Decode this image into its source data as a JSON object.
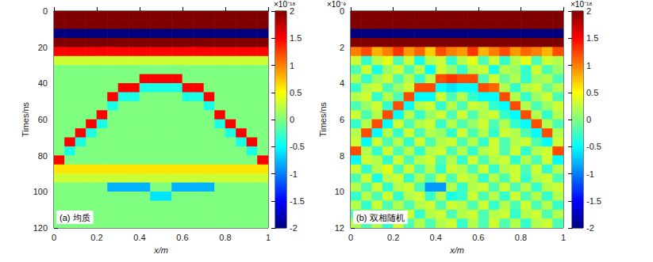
{
  "chart_data": [
    {
      "type": "heatmap",
      "title": "(a) 均质",
      "xlabel": "x/m",
      "ylabel": "Times/ns",
      "xlim": [
        0,
        1
      ],
      "xticks": [
        0,
        0.2,
        0.4,
        0.6,
        0.8,
        1
      ],
      "ylim": [
        0,
        120
      ],
      "yticks": [
        0,
        20,
        40,
        60,
        80,
        100,
        120
      ],
      "colorbar": {
        "range": [
          -2,
          2
        ],
        "ticks": [
          -2,
          -1.5,
          -1,
          -0.5,
          0,
          0.5,
          1,
          1.5,
          2
        ],
        "label": "×10⁻¹⁸"
      },
      "x": [
        0.025,
        0.075,
        0.125,
        0.175,
        0.225,
        0.275,
        0.325,
        0.375,
        0.425,
        0.475,
        0.525,
        0.575,
        0.625,
        0.675,
        0.725,
        0.775,
        0.825,
        0.875,
        0.925,
        0.975
      ],
      "y": [
        2.5,
        7.5,
        12.5,
        17.5,
        22.5,
        27.5,
        32.5,
        37.5,
        42.5,
        47.5,
        52.5,
        57.5,
        62.5,
        67.5,
        72.5,
        77.5,
        82.5,
        87.5,
        92.5,
        97.5,
        102.5,
        107.5,
        112.5,
        117.5
      ],
      "values": [
        [
          2,
          2,
          2,
          2,
          2,
          2,
          2,
          2,
          2,
          2,
          2,
          2,
          2,
          2,
          2,
          2,
          2,
          2,
          2,
          2
        ],
        [
          2,
          2,
          2,
          2,
          2,
          2,
          2,
          2,
          2,
          2,
          2,
          2,
          2,
          2,
          2,
          2,
          2,
          2,
          2,
          2
        ],
        [
          -2,
          -2,
          -2,
          -2,
          -2,
          -2,
          -2,
          -2,
          -2,
          -2,
          -2,
          -2,
          -2,
          -2,
          -2,
          -2,
          -2,
          -2,
          -2,
          -2
        ],
        [
          2,
          2,
          2,
          2,
          2,
          2,
          2,
          2,
          2,
          2,
          2,
          2,
          2,
          2,
          2,
          2,
          2,
          2,
          2,
          2
        ],
        [
          1.5,
          1.5,
          1.5,
          1.5,
          1.5,
          1.5,
          1.5,
          1.5,
          1.5,
          1.5,
          1.5,
          1.5,
          1.5,
          1.5,
          1.5,
          1.5,
          1.5,
          1.5,
          1.5,
          1.5
        ],
        [
          0.3,
          0.3,
          0.3,
          0.3,
          0.3,
          0.3,
          0.3,
          0.3,
          0.3,
          0.3,
          0.3,
          0.3,
          0.3,
          0.3,
          0.3,
          0.3,
          0.3,
          0.3,
          0.3,
          0.3
        ],
        [
          0,
          0,
          0,
          0,
          0,
          0,
          0,
          0,
          0,
          0,
          0,
          0,
          0,
          0,
          0,
          0,
          0,
          0,
          0,
          0
        ],
        [
          0,
          0,
          0,
          0,
          0,
          0,
          0,
          0,
          1.5,
          1.5,
          1.5,
          1.5,
          0,
          0,
          0,
          0,
          0,
          0,
          0,
          0
        ],
        [
          0,
          0,
          0,
          0,
          0,
          0,
          1.5,
          1.5,
          -0.4,
          -0.4,
          -0.4,
          -0.4,
          1.5,
          1.5,
          0,
          0,
          0,
          0,
          0,
          0
        ],
        [
          0,
          0,
          0,
          0,
          0,
          1.5,
          -0.4,
          -0.4,
          0,
          0,
          0,
          0,
          -0.4,
          -0.4,
          1.5,
          0,
          0,
          0,
          0,
          0
        ],
        [
          0,
          0,
          0,
          0,
          0,
          -0.4,
          0,
          0,
          0,
          0,
          0,
          0,
          0,
          0,
          -0.4,
          0,
          0,
          0,
          0,
          0
        ],
        [
          0,
          0,
          0,
          0,
          1.5,
          0,
          0,
          0,
          0,
          0,
          0,
          0,
          0,
          0,
          0,
          1.5,
          0,
          0,
          0,
          0
        ],
        [
          0,
          0,
          0,
          1.5,
          -0.4,
          0,
          0,
          0,
          0,
          0,
          0,
          0,
          0,
          0,
          0,
          -0.4,
          1.5,
          0,
          0,
          0
        ],
        [
          0,
          0,
          1.5,
          -0.4,
          0,
          0,
          0,
          0,
          0,
          0,
          0,
          0,
          0,
          0,
          0,
          0,
          -0.4,
          1.5,
          0,
          0
        ],
        [
          0,
          1.5,
          -0.4,
          0,
          0,
          0,
          0,
          0,
          0,
          0,
          0,
          0,
          0,
          0,
          0,
          0,
          0,
          -0.4,
          1.5,
          0
        ],
        [
          0,
          -0.4,
          0,
          0,
          0,
          0,
          0,
          0,
          0,
          0,
          0,
          0,
          0,
          0,
          0,
          0,
          0,
          0,
          -0.4,
          0
        ],
        [
          1.5,
          0,
          0,
          0,
          0,
          0,
          0,
          0,
          0,
          0,
          0,
          0,
          0,
          0,
          0,
          0,
          0,
          0,
          0,
          1.5
        ],
        [
          0.6,
          0.6,
          0.6,
          0.6,
          0.6,
          0.6,
          0.6,
          0.6,
          0.6,
          0.6,
          0.6,
          0.6,
          0.6,
          0.6,
          0.6,
          0.6,
          0.6,
          0.6,
          0.6,
          0.6
        ],
        [
          0.3,
          0.3,
          0.3,
          0.3,
          0.3,
          0.3,
          0.3,
          0.3,
          0.3,
          0.3,
          0.3,
          0.3,
          0.3,
          0.3,
          0.3,
          0.3,
          0.3,
          0.3,
          0.3,
          0.3
        ],
        [
          0,
          0,
          0,
          0,
          0,
          -0.8,
          -0.8,
          -0.8,
          -0.8,
          0,
          0,
          -0.8,
          -0.8,
          -0.8,
          -0.8,
          0,
          0,
          0,
          0,
          0
        ],
        [
          0,
          0,
          0,
          0,
          0,
          0,
          0,
          0,
          0,
          -0.6,
          -0.6,
          0,
          0,
          0,
          0,
          0,
          0,
          0,
          0,
          0
        ],
        [
          0,
          0,
          0,
          0,
          0,
          0,
          0,
          0,
          0,
          0,
          0,
          0,
          0,
          0,
          0,
          0,
          0,
          0,
          0,
          0
        ],
        [
          0,
          0,
          0,
          0,
          0,
          0,
          0,
          0,
          0,
          0,
          0,
          0,
          0,
          0,
          0,
          0,
          0,
          0,
          0,
          0
        ],
        [
          0,
          0,
          0,
          0,
          0,
          0,
          0,
          0,
          0,
          0,
          0,
          0,
          0,
          0,
          0,
          0,
          0,
          0,
          0,
          0
        ]
      ]
    },
    {
      "type": "heatmap",
      "title": "(b) 双相随机",
      "xlabel": "x/m",
      "ylabel": "Times/ns",
      "y_multiplier": "×10⁻⁹",
      "xlim": [
        0,
        1
      ],
      "xticks": [
        0,
        0.2,
        0.4,
        0.6,
        0.8,
        1
      ],
      "ylim": [
        0,
        12
      ],
      "yticks": [
        0,
        2,
        4,
        6,
        8,
        10,
        12
      ],
      "colorbar": {
        "range": [
          -2,
          2
        ],
        "ticks": [
          -2,
          -1.5,
          -1,
          -0.5,
          0,
          0.5,
          1,
          1.5,
          2
        ],
        "label": "×10⁻¹⁸"
      },
      "x": [
        0.025,
        0.075,
        0.125,
        0.175,
        0.225,
        0.275,
        0.325,
        0.375,
        0.425,
        0.475,
        0.525,
        0.575,
        0.625,
        0.675,
        0.725,
        0.775,
        0.825,
        0.875,
        0.925,
        0.975
      ],
      "y": [
        0.25,
        0.75,
        1.25,
        1.75,
        2.25,
        2.75,
        3.25,
        3.75,
        4.25,
        4.75,
        5.25,
        5.75,
        6.25,
        6.75,
        7.25,
        7.75,
        8.25,
        8.75,
        9.25,
        9.75,
        10.25,
        10.75,
        11.25,
        11.75
      ],
      "values": [
        [
          2,
          2,
          2,
          2,
          2,
          2,
          2,
          2,
          2,
          2,
          2,
          2,
          2,
          2,
          2,
          2,
          2,
          2,
          2,
          2
        ],
        [
          2,
          2,
          2,
          2,
          2,
          2,
          2,
          2,
          2,
          2,
          2,
          2,
          2,
          2,
          2,
          2,
          2,
          2,
          2,
          2
        ],
        [
          -2,
          -2,
          -2,
          -2,
          -2,
          -2,
          -2,
          -2,
          -2,
          -2,
          -2,
          -2,
          -2,
          -2,
          -2,
          -2,
          -2,
          -2,
          -2,
          -2
        ],
        [
          2,
          2,
          2,
          2,
          2,
          2,
          2,
          2,
          2,
          2,
          2,
          2,
          2,
          2,
          2,
          2,
          2,
          2,
          2,
          2
        ],
        [
          1,
          1.2,
          0.8,
          1,
          1.3,
          0.9,
          1.1,
          0.7,
          1.2,
          1,
          0.9,
          1.3,
          0.8,
          1,
          1.2,
          0.9,
          1.1,
          1,
          0.8,
          1.2
        ],
        [
          0.3,
          -0.3,
          0.2,
          0.4,
          -0.2,
          0.3,
          -0.4,
          0.2,
          0.3,
          -0.3,
          0.2,
          0.4,
          -0.2,
          0.3,
          -0.3,
          0.2,
          0.4,
          -0.2,
          0.3,
          0.2
        ],
        [
          -0.2,
          0.3,
          -0.4,
          0.1,
          0.3,
          -0.2,
          0.2,
          -0.5,
          0.3,
          0.1,
          -0.3,
          0.2,
          0.3,
          -0.4,
          0.2,
          0.1,
          -0.3,
          0.3,
          -0.2,
          0.1
        ],
        [
          0.2,
          -0.3,
          0.1,
          0.3,
          -0.2,
          0.2,
          -0.3,
          0.2,
          1.2,
          1.3,
          1.2,
          1.2,
          -0.2,
          0.3,
          -0.1,
          0.2,
          -0.3,
          0.1,
          0.2,
          -0.2
        ],
        [
          -0.3,
          0.2,
          0.3,
          -0.2,
          0.1,
          0.3,
          1.2,
          1.2,
          -0.5,
          -0.6,
          -0.5,
          -0.5,
          1.2,
          1.1,
          0.2,
          -0.3,
          0.2,
          0.3,
          -0.1,
          0.2
        ],
        [
          0.2,
          0.3,
          -0.3,
          0.2,
          -0.2,
          1.2,
          -0.5,
          -0.5,
          0.3,
          -0.2,
          0.2,
          -0.3,
          -0.5,
          -0.5,
          1.2,
          0.2,
          -0.3,
          0.1,
          0.3,
          -0.2
        ],
        [
          -0.2,
          0.1,
          0.3,
          -0.3,
          1.2,
          -0.5,
          0.2,
          0.3,
          -0.3,
          0.2,
          -0.2,
          0.3,
          0.2,
          -0.3,
          -0.5,
          1.2,
          0.2,
          -0.2,
          0.1,
          0.3
        ],
        [
          0.3,
          -0.2,
          0.2,
          1.2,
          -0.5,
          0.2,
          -0.3,
          0.1,
          0.3,
          -0.2,
          0.3,
          -0.2,
          0.2,
          0.3,
          -0.3,
          -0.5,
          1.2,
          0.2,
          -0.3,
          0.2
        ],
        [
          -0.3,
          0.2,
          1.2,
          -0.5,
          0.3,
          -0.2,
          0.2,
          0.3,
          -0.3,
          0.2,
          -0.2,
          0.1,
          0.3,
          -0.2,
          0.2,
          -0.3,
          -0.5,
          1.2,
          0.2,
          -0.2
        ],
        [
          0.2,
          1.2,
          -0.5,
          0.2,
          -0.3,
          0.3,
          -0.2,
          0.2,
          0.1,
          -0.3,
          0.3,
          -0.2,
          0.2,
          -0.3,
          0.3,
          0.2,
          -0.2,
          -0.5,
          1.2,
          0.2
        ],
        [
          0.3,
          -0.5,
          0.3,
          -0.2,
          0.2,
          -0.3,
          0.3,
          -0.2,
          0.2,
          0.3,
          -0.2,
          0.2,
          -0.3,
          0.3,
          -0.2,
          0.2,
          0.3,
          -0.2,
          -0.5,
          0.3
        ],
        [
          1.2,
          0.2,
          -0.3,
          0.3,
          -0.2,
          0.2,
          -0.3,
          0.2,
          0.3,
          -0.2,
          0.2,
          -0.3,
          0.2,
          0.3,
          -0.2,
          0.3,
          -0.3,
          0.2,
          0.3,
          1.2
        ],
        [
          -0.5,
          0.3,
          0.2,
          -0.3,
          0.3,
          -0.2,
          0.2,
          0.3,
          -0.2,
          0.2,
          -0.3,
          0.3,
          -0.2,
          0.2,
          0.3,
          -0.3,
          0.2,
          -0.2,
          0.3,
          -0.5
        ],
        [
          0.3,
          -0.3,
          0.2,
          0.4,
          -0.2,
          0.3,
          -0.2,
          0.2,
          -0.3,
          0.3,
          0.2,
          -0.2,
          0.3,
          -0.3,
          0.2,
          0.3,
          -0.2,
          0.3,
          -0.3,
          0.2
        ],
        [
          -0.2,
          0.3,
          -0.4,
          0.2,
          0.3,
          -0.3,
          0.2,
          -0.2,
          0.3,
          -0.2,
          0.3,
          0.2,
          -0.3,
          0.2,
          -0.2,
          0.3,
          -0.3,
          0.2,
          0.3,
          -0.2
        ],
        [
          0.2,
          -0.2,
          0.3,
          -0.3,
          0.2,
          0.3,
          -0.2,
          -0.9,
          -0.9,
          0.2,
          -0.3,
          0.2,
          0.3,
          -0.2,
          0.3,
          -0.2,
          0.2,
          -0.3,
          0.2,
          0.3
        ],
        [
          -0.3,
          0.2,
          -0.2,
          0.3,
          -0.3,
          0.2,
          0.3,
          -0.3,
          0.2,
          -0.4,
          -0.3,
          0.3,
          -0.2,
          0.2,
          -0.3,
          0.3,
          -0.2,
          0.2,
          -0.3,
          0.2
        ],
        [
          0.2,
          -0.3,
          0.3,
          -0.2,
          0.2,
          -0.2,
          0.2,
          0.3,
          -0.2,
          0.3,
          0.2,
          -0.2,
          0.3,
          -0.3,
          0.2,
          -0.2,
          0.3,
          -0.2,
          0.2,
          -0.3
        ],
        [
          -0.2,
          0.2,
          -0.3,
          0.2,
          -0.2,
          0.3,
          -0.3,
          0.2,
          0.3,
          -0.2,
          0.2,
          0.3,
          -0.2,
          0.2,
          0.3,
          -0.3,
          0.2,
          0.3,
          -0.2,
          0.2
        ],
        [
          0.2,
          -0.2,
          0.2,
          -0.3,
          0.3,
          -0.2,
          0.2,
          -0.2,
          0.2,
          0.3,
          -0.3,
          0.2,
          -0.2,
          0.3,
          -0.2,
          0.2,
          -0.3,
          0.2,
          0.3,
          -0.2
        ]
      ]
    }
  ]
}
